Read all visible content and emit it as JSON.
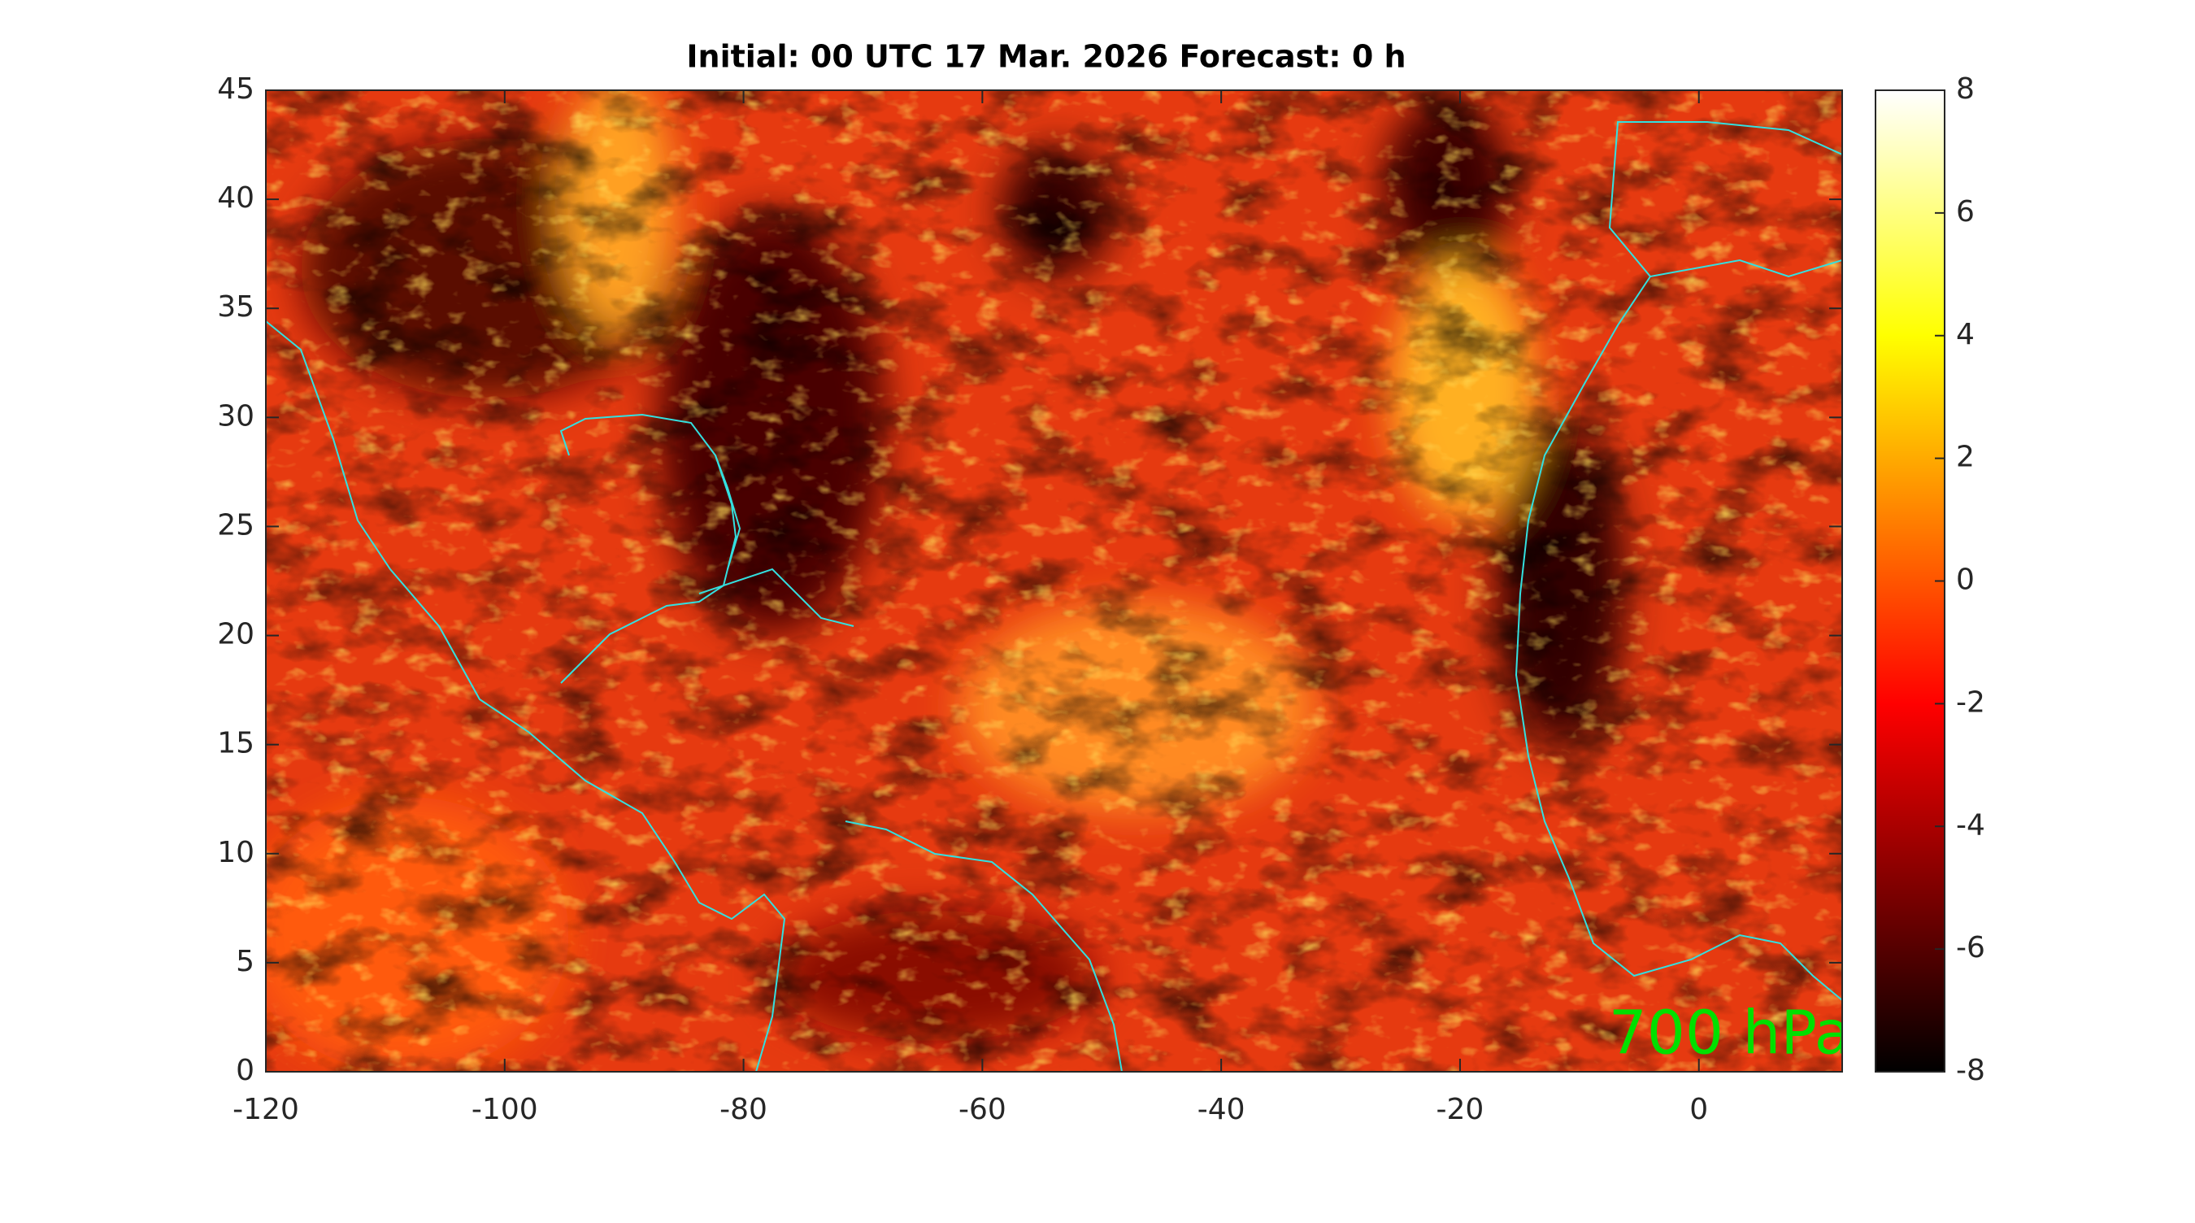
{
  "chart_data": {
    "type": "heatmap",
    "title": "Initial: 00 UTC 17 Mar. 2026 Forecast: 0 h",
    "annotation": "700 hPa",
    "xlim": [
      -120,
      12
    ],
    "xticks": [
      -120,
      -100,
      -80,
      -60,
      -40,
      -20,
      0
    ],
    "ylim": [
      0,
      45
    ],
    "yticks": [
      0,
      5,
      10,
      15,
      20,
      25,
      30,
      35,
      40,
      45
    ],
    "colormap": "hot",
    "clim": [
      -8,
      8
    ],
    "cticks": [
      -8,
      -6,
      -4,
      -2,
      0,
      2,
      4,
      6,
      8
    ],
    "coastline_color": "#33e0e0",
    "annotation_color": "#00e000"
  }
}
